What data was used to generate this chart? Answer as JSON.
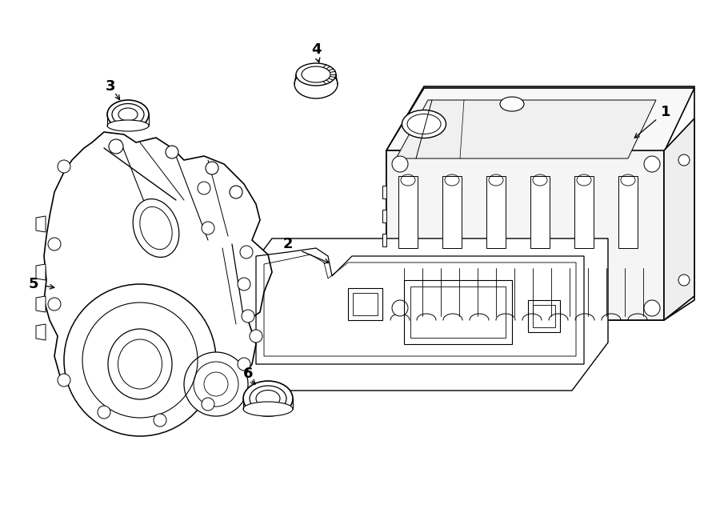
{
  "background_color": "#ffffff",
  "line_color": "#000000",
  "line_width": 1.0,
  "fig_width": 9.0,
  "fig_height": 6.61,
  "dpi": 100
}
